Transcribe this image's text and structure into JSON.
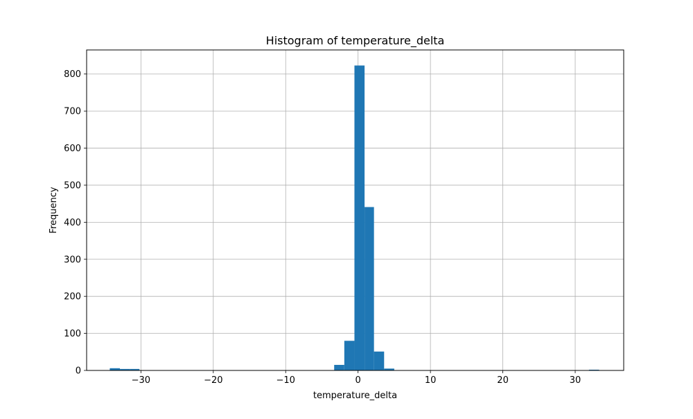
{
  "chart_data": {
    "type": "bar",
    "title": "Histogram of temperature_delta",
    "xlabel": "temperature_delta",
    "ylabel": "Frequency",
    "xlim": [
      -37.5,
      36.7
    ],
    "ylim": [
      0,
      865
    ],
    "xticks": [
      -30,
      -20,
      -10,
      0,
      10,
      20,
      30
    ],
    "xtick_labels": [
      "−30",
      "−20",
      "−10",
      "0",
      "10",
      "20",
      "30"
    ],
    "yticks": [
      0,
      100,
      200,
      300,
      400,
      500,
      600,
      700,
      800
    ],
    "ytick_labels": [
      "0",
      "100",
      "200",
      "300",
      "400",
      "500",
      "600",
      "700",
      "800"
    ],
    "grid": true,
    "bar_color": "#1f77b4",
    "bins": [
      {
        "x0": -34.3,
        "x1": -32.9,
        "count": 6
      },
      {
        "x0": -32.9,
        "x1": -31.5,
        "count": 4
      },
      {
        "x0": -31.5,
        "x1": -30.2,
        "count": 4
      },
      {
        "x0": -3.3,
        "x1": -1.9,
        "count": 15
      },
      {
        "x0": -1.9,
        "x1": -0.5,
        "count": 80
      },
      {
        "x0": -0.5,
        "x1": 0.9,
        "count": 823
      },
      {
        "x0": 0.9,
        "x1": 2.2,
        "count": 441
      },
      {
        "x0": 2.2,
        "x1": 3.6,
        "count": 51
      },
      {
        "x0": 3.6,
        "x1": 5.0,
        "count": 5
      },
      {
        "x0": 31.9,
        "x1": 33.3,
        "count": 2
      }
    ]
  }
}
